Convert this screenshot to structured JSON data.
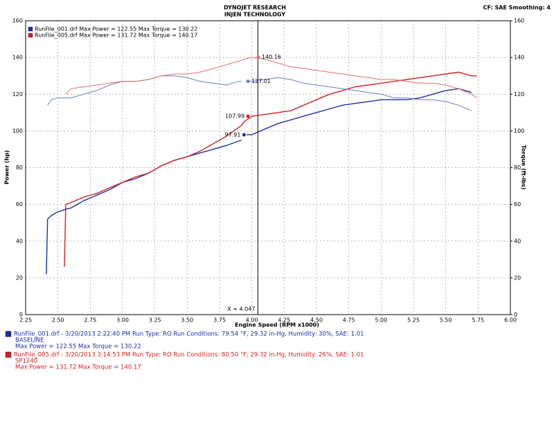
{
  "chart_data": {
    "type": "line",
    "title": "DYNOJET RESEARCH",
    "subtitle": "INJEN TECHNOLOGY",
    "settings_text": "CF: SAE  Smoothing: 4",
    "x_label": "Engine Speed (RPM x1000)",
    "y_label": "Power (hp)",
    "y2_label": "Torque (ft-lbs)",
    "grid": true,
    "xlim": [
      2.25,
      6.0
    ],
    "xticks": [
      2.25,
      {
        "value": 2.5,
        "label": "2.50"
      },
      2.75,
      {
        "value": 3.0,
        "label": "3.00"
      },
      3.25,
      {
        "value": 3.5,
        "label": "3.50"
      },
      3.75,
      {
        "value": 4.0,
        "label": "4.00"
      },
      4.25,
      {
        "value": 4.5,
        "label": "4.50"
      },
      4.75,
      {
        "value": 5.0,
        "label": "5.00"
      },
      5.25,
      {
        "value": 5.5,
        "label": "5.50"
      },
      5.75,
      {
        "value": 6.0,
        "label": "6.00"
      }
    ],
    "ylim": [
      0,
      160
    ],
    "yticks": [
      0,
      20,
      40,
      60,
      80,
      100,
      120,
      140,
      160
    ],
    "y2lim": [
      0,
      160
    ],
    "y2ticks": [
      0,
      20,
      40,
      60,
      80,
      100,
      120,
      140,
      160
    ],
    "x": [
      2.41,
      2.42,
      2.45,
      2.5,
      2.55,
      2.56,
      2.6,
      2.7,
      2.8,
      2.9,
      3.0,
      3.1,
      3.2,
      3.3,
      3.4,
      3.5,
      3.6,
      3.7,
      3.8,
      3.9,
      3.92,
      3.94,
      3.96,
      4.0,
      4.1,
      4.2,
      4.3,
      4.4,
      4.5,
      4.6,
      4.7,
      4.8,
      4.9,
      5.0,
      5.1,
      5.2,
      5.3,
      5.4,
      5.5,
      5.6,
      5.7,
      5.74
    ],
    "series": [
      {
        "color": "#1c2fa8",
        "width": 1.4,
        "values": [
          22,
          52,
          54,
          56,
          57,
          57.5,
          58,
          62,
          65,
          68,
          72,
          74,
          77,
          81,
          84,
          86,
          88,
          90,
          92,
          94.5,
          95,
          null,
          97.91,
          98,
          101,
          104,
          106,
          108,
          110,
          112,
          114,
          115,
          116,
          117,
          117,
          117,
          118,
          120,
          122,
          123,
          121,
          null
        ]
      },
      {
        "color": "#d42020",
        "width": 1.4,
        "values": [
          null,
          null,
          null,
          null,
          26,
          60,
          61,
          64,
          66,
          69,
          72,
          75,
          77,
          81,
          84,
          86,
          89,
          93,
          97,
          102,
          103,
          105,
          106,
          107.99,
          109,
          110,
          111,
          114,
          117,
          120,
          122,
          124,
          125,
          126,
          127,
          128,
          129,
          130,
          131,
          132,
          130,
          130
        ]
      },
      {
        "color": "#6a78d0",
        "width": 1,
        "axis": "y2",
        "values": [
          null,
          114,
          117,
          118,
          118,
          118,
          118,
          120,
          122,
          125,
          127,
          127,
          128,
          130,
          130,
          129,
          127,
          126,
          125,
          127,
          127,
          null,
          127.01,
          127,
          128,
          129,
          128,
          126,
          125,
          124,
          123,
          122,
          121,
          120,
          118,
          118,
          117,
          117,
          116,
          114,
          111,
          null
        ]
      },
      {
        "color": "#e86a6a",
        "width": 1,
        "axis": "y2",
        "values": [
          null,
          null,
          null,
          null,
          null,
          120,
          123,
          124,
          125,
          126,
          127,
          127,
          128,
          130,
          131,
          131,
          132,
          134,
          136,
          138,
          138.5,
          139,
          139.5,
          140,
          139,
          137,
          135,
          134,
          133,
          132,
          131,
          130,
          129,
          128,
          128,
          127,
          126,
          126,
          125,
          123,
          120,
          118
        ]
      }
    ],
    "legend": [
      {
        "color": "#1c2fa8",
        "text": "RunFile_001.drf Max Power = 122.55    Max Torque = 130.22"
      },
      {
        "color": "#d42020",
        "text": "RunFile_005.drf Max Power = 131.72    Max Torque = 140.17"
      }
    ],
    "markers": [
      {
        "x": 4.05,
        "value": 140.16,
        "color": "#e86a6a"
      },
      {
        "x": 3.97,
        "value": 127.01,
        "color": "#6a78d0"
      },
      {
        "x": 3.97,
        "value": 107.99,
        "color": "#d42020"
      },
      {
        "x": 3.94,
        "value": 97.91,
        "color": "#1c2fa8"
      }
    ],
    "cursor": {
      "x": 4.047,
      "label": "X = 4.047"
    },
    "runs": [
      {
        "color": "#1c2fa8",
        "lines": [
          "RunFile_001.drf - 3/20/2013 2:22:40 PM  Run Type: RO  Run Conditions: 79.54 °F, 29.32 in-Hg,  Humidity: 30%, SAE: 1.01",
          "BASELINE",
          "Max Power = 122.55   Max Torque = 130.22"
        ]
      },
      {
        "color": "#d42020",
        "lines": [
          "RunFile_005.drf - 3/20/2013 3:14:53 PM  Run Type: RO  Run Conditions: 80.50 °F, 29.32 in-Hg,  Humidity: 26%, SAE: 1.01",
          "SP1240",
          "Max Power = 131.72   Max Torque = 140.17"
        ]
      }
    ]
  }
}
